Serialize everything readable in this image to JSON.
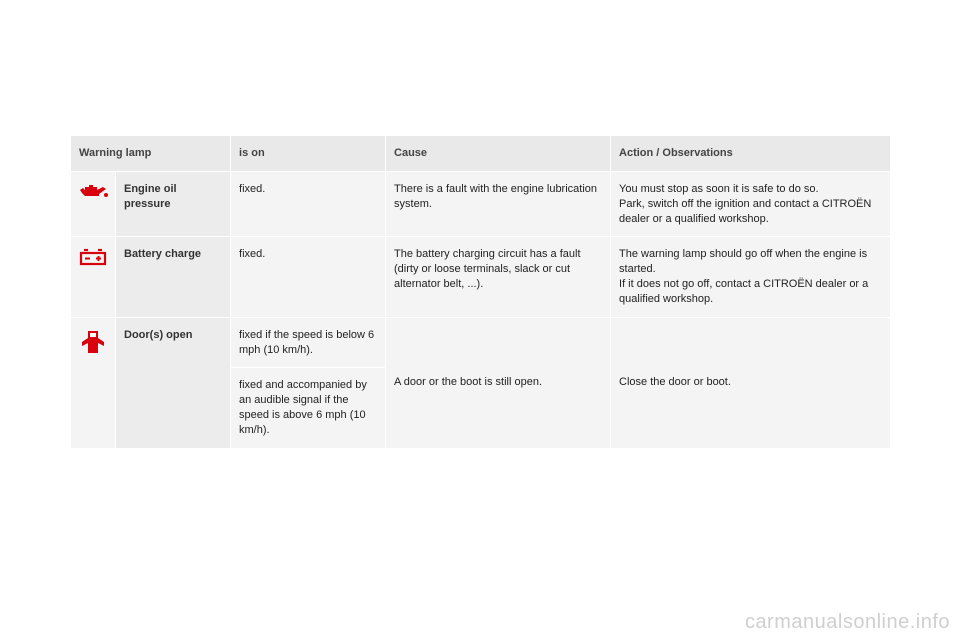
{
  "colors": {
    "icon_red": "#d8000c",
    "header_bg": "#e9e9e9",
    "cell_bg": "#f4f4f4",
    "name_bg": "#ececec",
    "border": "#ffffff",
    "text": "#222222",
    "watermark": "#cfcfcf"
  },
  "headers": {
    "lamp": "Warning lamp",
    "ison": "is on",
    "cause": "Cause",
    "action": "Action / Observations"
  },
  "rows": {
    "oil": {
      "name": "Engine oil pressure",
      "ison": "fixed.",
      "cause": "There is a fault with the engine lubrication system.",
      "action": "You must stop as soon it is safe to do so.\nPark, switch off the ignition and contact a CITROËN dealer or a qualified workshop."
    },
    "battery": {
      "name": "Battery charge",
      "ison": "fixed.",
      "cause": "The battery charging circuit has a fault (dirty or loose terminals, slack or cut alternator belt, ...).",
      "action": "The warning lamp should go off when the engine is started.\nIf it does not go off, contact a CITROËN dealer or a qualified workshop."
    },
    "door": {
      "name": "Door(s) open",
      "ison1": "fixed if the speed is below 6 mph (10 km/h).",
      "ison2": "fixed and accompanied by an audible signal if the speed is above 6 mph (10 km/h).",
      "cause": "A door or the boot is still open.",
      "action": "Close the door or boot."
    }
  },
  "watermark": "carmanualsonline.info"
}
